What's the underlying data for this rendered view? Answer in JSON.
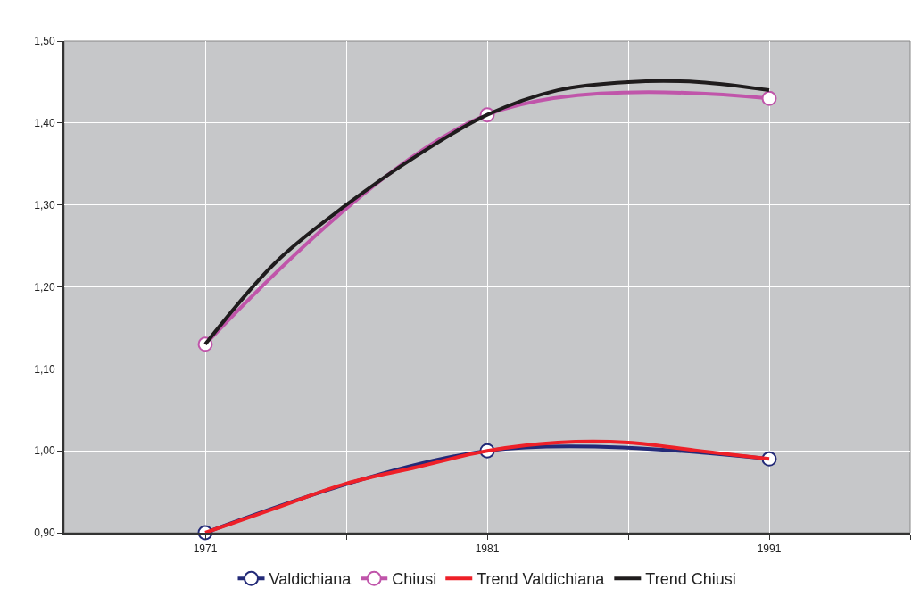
{
  "chart_data": {
    "type": "line",
    "x": [
      1971,
      1981,
      1991
    ],
    "series": [
      {
        "name": "Valdichiana",
        "color": "#232a78",
        "values": [
          0.9,
          1.0,
          0.99
        ],
        "marker": "circle"
      },
      {
        "name": "Chiusi",
        "color": "#c055aa",
        "values": [
          1.13,
          1.41,
          1.43
        ],
        "marker": "circle"
      },
      {
        "name": "Trend Valdichiana",
        "color": "#ee2028",
        "x": [
          1971,
          1973.5,
          1976,
          1978.5,
          1981,
          1983.5,
          1986,
          1988.5,
          1991
        ],
        "values": [
          0.9,
          0.93,
          0.96,
          0.98,
          1.0,
          1.01,
          1.01,
          1.0,
          0.99
        ],
        "marker": "none"
      },
      {
        "name": "Trend Chiusi",
        "color": "#1f1c1d",
        "x": [
          1971,
          1973.5,
          1976,
          1978.5,
          1981,
          1983.5,
          1986,
          1988.5,
          1991
        ],
        "values": [
          1.13,
          1.23,
          1.3,
          1.36,
          1.41,
          1.44,
          1.45,
          1.45,
          1.44
        ],
        "marker": "none"
      }
    ],
    "xlim": [
      1966,
      1996
    ],
    "xticks": [
      1971,
      {
        "value": 1976,
        "label": null
      },
      1981,
      {
        "value": 1986,
        "label": null
      },
      1991,
      {
        "value": 1996,
        "label": null
      }
    ],
    "ylim": [
      0.9,
      1.5
    ],
    "yticks": [
      {
        "value": 0.9,
        "label": "0,90"
      },
      {
        "value": 1.0,
        "label": "1,00"
      },
      {
        "value": 1.1,
        "label": "1,10"
      },
      {
        "value": 1.2,
        "label": "1,20"
      },
      {
        "value": 1.3,
        "label": "1,30"
      },
      {
        "value": 1.4,
        "label": "1,40"
      },
      {
        "value": 1.5,
        "label": "1,50"
      }
    ],
    "grid": true,
    "legend": "bottom",
    "line_style": "solid"
  }
}
